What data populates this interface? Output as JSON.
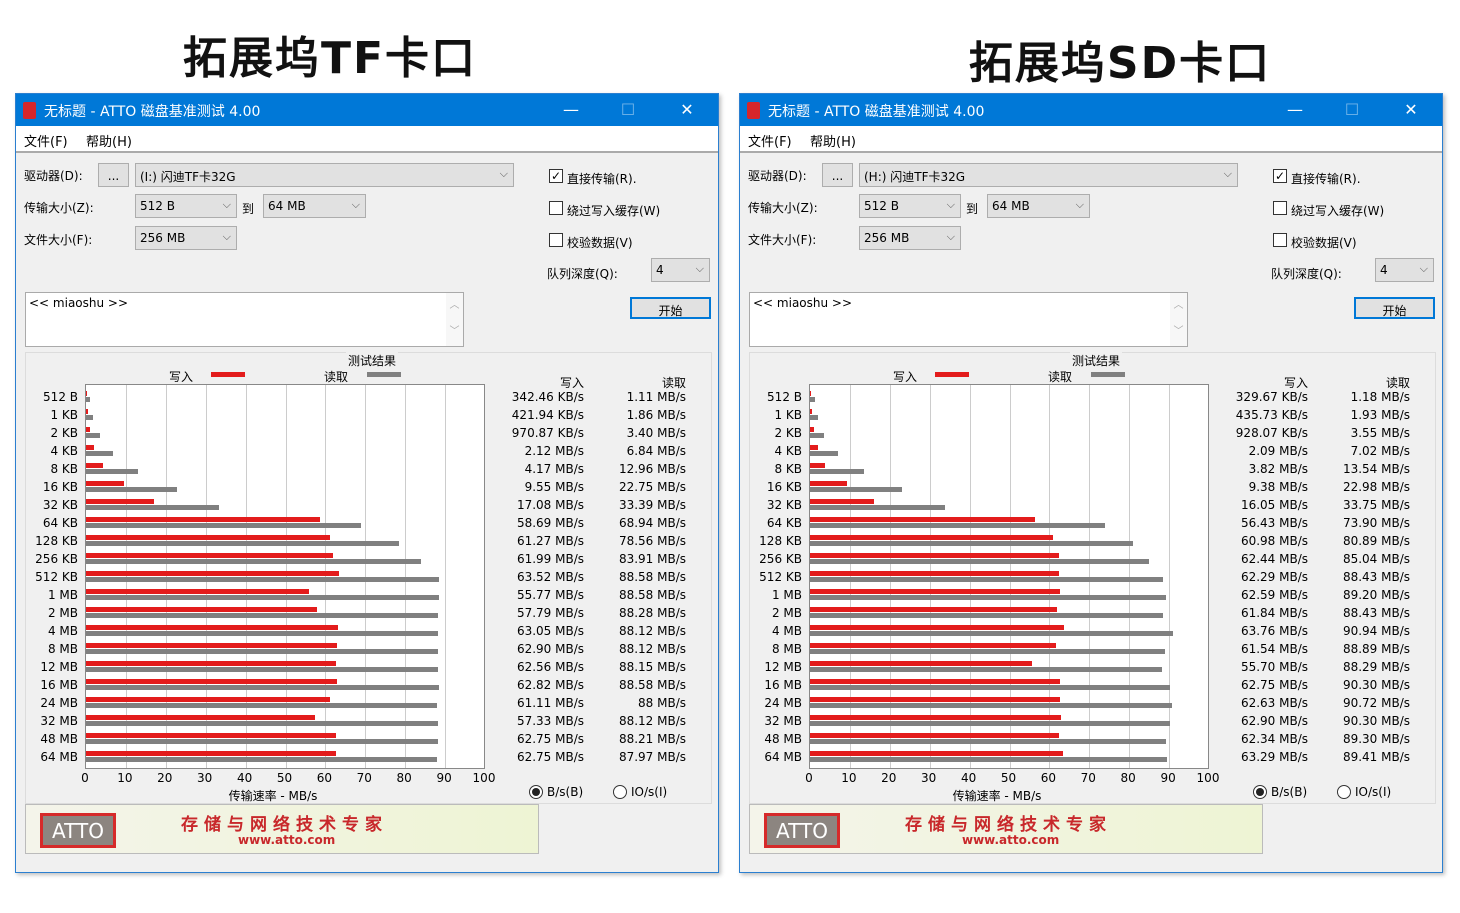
{
  "headings": [
    "拓展坞TF卡口",
    "拓展坞SD卡口"
  ],
  "colors": {
    "write": "#e31c1c",
    "read": "#808080",
    "titlebar": "#0078d7"
  },
  "windows": [
    {
      "title": "无标题 - ATTO 磁盘基准测试 4.00",
      "menu": [
        "文件(F)",
        "帮助(H)"
      ],
      "drive_label": "驱动器(D):",
      "browse_label": "...",
      "drive_value": "(I:) 闪迪TF卡32G",
      "transfer_label": "传输大小(Z):",
      "transfer_from": "512 B",
      "to_label": "到",
      "transfer_to": "64 MB",
      "filesize_label": "文件大小(F):",
      "filesize_value": "256 MB",
      "checkboxes": [
        {
          "label": "直接传输(R).",
          "checked": true
        },
        {
          "label": "绕过写入缓存(W)",
          "checked": false
        },
        {
          "label": "校验数据(V)",
          "checked": false
        }
      ],
      "queue_label": "队列深度(Q):",
      "queue_value": "4",
      "start_label": "开始",
      "description": "<< miaoshu >>",
      "results_title": "测试结果",
      "legend_write": "写入",
      "legend_read": "读取",
      "col_write": "写入",
      "col_read": "读取",
      "xlabel": "传输速率 - MB/s",
      "radio_bs": "B/s(B)",
      "radio_io": "IO/s(I)",
      "radio_selected": "bs",
      "banner_logo": "ATTO",
      "banner_slogan": "存储与网络技术专家",
      "banner_url": "www.atto.com",
      "write_text": [
        "342.46 KB/s",
        "421.94 KB/s",
        "970.87 KB/s",
        "2.12 MB/s",
        "4.17 MB/s",
        "9.55 MB/s",
        "17.08 MB/s",
        "58.69 MB/s",
        "61.27 MB/s",
        "61.99 MB/s",
        "63.52 MB/s",
        "55.77 MB/s",
        "57.79 MB/s",
        "63.05 MB/s",
        "62.90 MB/s",
        "62.56 MB/s",
        "62.82 MB/s",
        "61.11 MB/s",
        "57.33 MB/s",
        "62.75 MB/s",
        "62.75 MB/s"
      ],
      "read_text": [
        "1.11 MB/s",
        "1.86 MB/s",
        "3.40 MB/s",
        "6.84 MB/s",
        "12.96 MB/s",
        "22.75 MB/s",
        "33.39 MB/s",
        "68.94 MB/s",
        "78.56 MB/s",
        "83.91 MB/s",
        "88.58 MB/s",
        "88.58 MB/s",
        "88.28 MB/s",
        "88.12 MB/s",
        "88.12 MB/s",
        "88.15 MB/s",
        "88.58 MB/s",
        "88 MB/s",
        "88.12 MB/s",
        "88.21 MB/s",
        "87.97 MB/s"
      ]
    },
    {
      "title": "无标题 - ATTO 磁盘基准测试 4.00",
      "menu": [
        "文件(F)",
        "帮助(H)"
      ],
      "drive_label": "驱动器(D):",
      "browse_label": "...",
      "drive_value": "(H:) 闪迪TF卡32G",
      "transfer_label": "传输大小(Z):",
      "transfer_from": "512 B",
      "to_label": "到",
      "transfer_to": "64 MB",
      "filesize_label": "文件大小(F):",
      "filesize_value": "256 MB",
      "checkboxes": [
        {
          "label": "直接传输(R).",
          "checked": true
        },
        {
          "label": "绕过写入缓存(W)",
          "checked": false
        },
        {
          "label": "校验数据(V)",
          "checked": false
        }
      ],
      "queue_label": "队列深度(Q):",
      "queue_value": "4",
      "start_label": "开始",
      "description": "<< miaoshu >>",
      "results_title": "测试结果",
      "legend_write": "写入",
      "legend_read": "读取",
      "col_write": "写入",
      "col_read": "读取",
      "xlabel": "传输速率 - MB/s",
      "radio_bs": "B/s(B)",
      "radio_io": "IO/s(I)",
      "radio_selected": "bs",
      "banner_logo": "ATTO",
      "banner_slogan": "存储与网络技术专家",
      "banner_url": "www.atto.com",
      "write_text": [
        "329.67 KB/s",
        "435.73 KB/s",
        "928.07 KB/s",
        "2.09 MB/s",
        "3.82 MB/s",
        "9.38 MB/s",
        "16.05 MB/s",
        "56.43 MB/s",
        "60.98 MB/s",
        "62.44 MB/s",
        "62.29 MB/s",
        "62.59 MB/s",
        "61.84 MB/s",
        "63.76 MB/s",
        "61.54 MB/s",
        "55.70 MB/s",
        "62.75 MB/s",
        "62.63 MB/s",
        "62.90 MB/s",
        "62.34 MB/s",
        "63.29 MB/s"
      ],
      "read_text": [
        "1.18 MB/s",
        "1.93 MB/s",
        "3.55 MB/s",
        "7.02 MB/s",
        "13.54 MB/s",
        "22.98 MB/s",
        "33.75 MB/s",
        "73.90 MB/s",
        "80.89 MB/s",
        "85.04 MB/s",
        "88.43 MB/s",
        "89.20 MB/s",
        "88.43 MB/s",
        "90.94 MB/s",
        "88.89 MB/s",
        "88.29 MB/s",
        "90.30 MB/s",
        "90.72 MB/s",
        "90.30 MB/s",
        "89.30 MB/s",
        "89.41 MB/s"
      ]
    }
  ],
  "chart_data": [
    {
      "type": "bar",
      "orientation": "horizontal",
      "categories": [
        "512 B",
        "1 KB",
        "2 KB",
        "4 KB",
        "8 KB",
        "16 KB",
        "32 KB",
        "64 KB",
        "128 KB",
        "256 KB",
        "512 KB",
        "1 MB",
        "2 MB",
        "4 MB",
        "8 MB",
        "12 MB",
        "16 MB",
        "24 MB",
        "32 MB",
        "48 MB",
        "64 MB"
      ],
      "xlabel": "传输速率 - MB/s",
      "xlim": [
        0,
        100
      ],
      "xticks": [
        0,
        10,
        20,
        30,
        40,
        50,
        60,
        70,
        80,
        90,
        100
      ],
      "grid": true,
      "series": [
        {
          "name": "写入",
          "values": [
            0.33,
            0.41,
            0.95,
            2.12,
            4.17,
            9.55,
            17.08,
            58.69,
            61.27,
            61.99,
            63.52,
            55.77,
            57.79,
            63.05,
            62.9,
            62.56,
            62.82,
            61.11,
            57.33,
            62.75,
            62.75
          ]
        },
        {
          "name": "读取",
          "values": [
            1.11,
            1.86,
            3.4,
            6.84,
            12.96,
            22.75,
            33.39,
            68.94,
            78.56,
            83.91,
            88.58,
            88.58,
            88.28,
            88.12,
            88.12,
            88.15,
            88.58,
            88,
            88.12,
            88.21,
            87.97
          ]
        }
      ]
    },
    {
      "type": "bar",
      "orientation": "horizontal",
      "categories": [
        "512 B",
        "1 KB",
        "2 KB",
        "4 KB",
        "8 KB",
        "16 KB",
        "32 KB",
        "64 KB",
        "128 KB",
        "256 KB",
        "512 KB",
        "1 MB",
        "2 MB",
        "4 MB",
        "8 MB",
        "12 MB",
        "16 MB",
        "24 MB",
        "32 MB",
        "48 MB",
        "64 MB"
      ],
      "xlabel": "传输速率 - MB/s",
      "xlim": [
        0,
        100
      ],
      "xticks": [
        0,
        10,
        20,
        30,
        40,
        50,
        60,
        70,
        80,
        90,
        100
      ],
      "grid": true,
      "series": [
        {
          "name": "写入",
          "values": [
            0.32,
            0.43,
            0.91,
            2.09,
            3.82,
            9.38,
            16.05,
            56.43,
            60.98,
            62.44,
            62.29,
            62.59,
            61.84,
            63.76,
            61.54,
            55.7,
            62.75,
            62.63,
            62.9,
            62.34,
            63.29
          ]
        },
        {
          "name": "读取",
          "values": [
            1.18,
            1.93,
            3.55,
            7.02,
            13.54,
            22.98,
            33.75,
            73.9,
            80.89,
            85.04,
            88.43,
            89.2,
            88.43,
            90.94,
            88.89,
            88.29,
            90.3,
            90.72,
            90.3,
            89.3,
            89.41
          ]
        }
      ]
    }
  ]
}
